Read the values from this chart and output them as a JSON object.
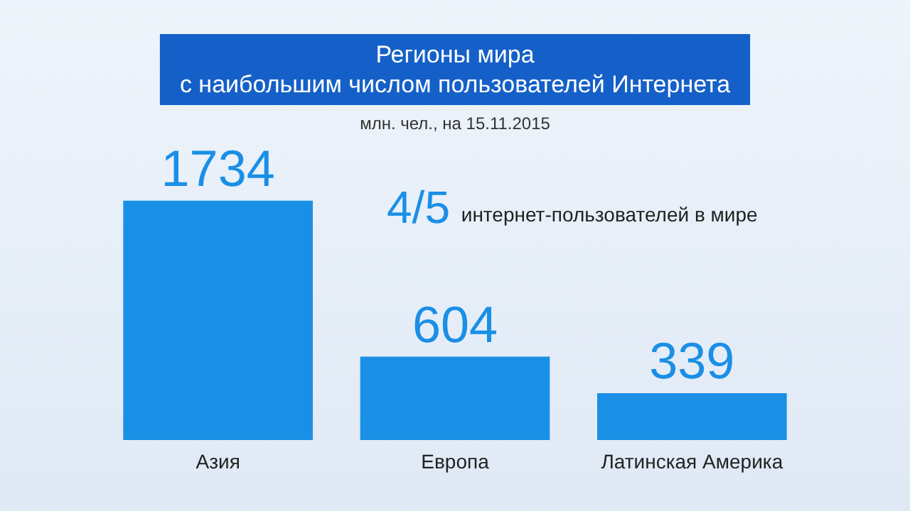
{
  "chart_data": {
    "type": "bar",
    "title": "Регионы мира\nс наибольшим числом пользователей Интернета",
    "subtitle": "млн. чел., на 15.11.2015",
    "categories": [
      "Азия",
      "Европа",
      "Латинская Америка"
    ],
    "values": [
      1734,
      604,
      339
    ],
    "color": "#1a8fe6",
    "data_labels": true,
    "tick_labels": "x",
    "annotations": [
      "4/5 интернет-пользователей в мире"
    ]
  }
}
